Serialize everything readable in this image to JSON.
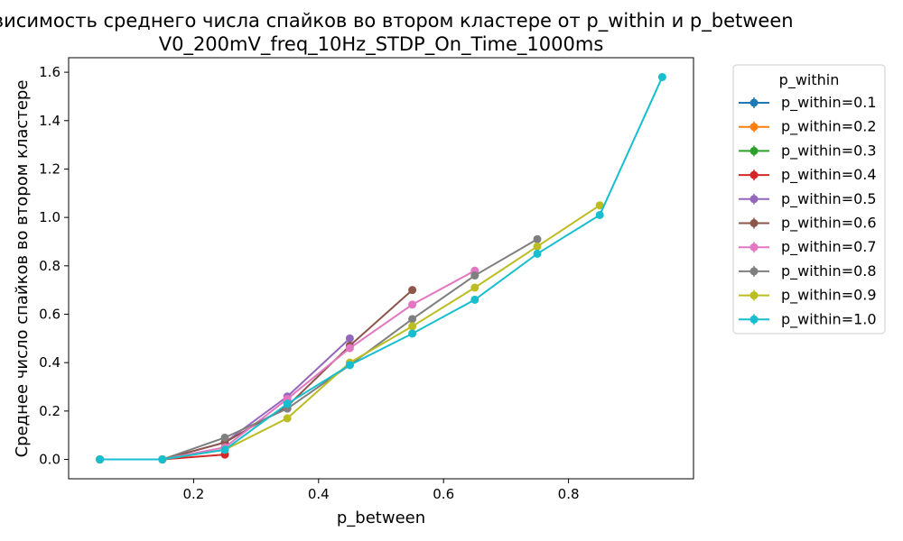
{
  "chart_data": {
    "type": "line",
    "title_line1": "Зависимость среднего числа спайков во втором кластере от p_within и p_between",
    "title_line2": "V0_200mV_freq_10Hz_STDP_On_Time_1000ms",
    "xlabel": "p_between",
    "ylabel": "Среднее число спайков во втором кластере",
    "xlim": [
      0.0,
      1.0
    ],
    "ylim": [
      -0.08,
      1.66
    ],
    "xticks": [
      0.2,
      0.4,
      0.6,
      0.8
    ],
    "yticks": [
      0.0,
      0.2,
      0.4,
      0.6,
      0.8,
      1.0,
      1.2,
      1.4,
      1.6
    ],
    "grid": false,
    "legend_title": "p_within",
    "legend_position": "outside-right",
    "series": [
      {
        "name": "p_within=0.1",
        "color": "#1f77b4",
        "x": [
          0.05,
          0.15
        ],
        "y": [
          0.0,
          0.0
        ]
      },
      {
        "name": "p_within=0.2",
        "color": "#ff7f0e",
        "x": [
          0.05,
          0.15
        ],
        "y": [
          0.0,
          0.0
        ]
      },
      {
        "name": "p_within=0.3",
        "color": "#2ca02c",
        "x": [
          0.05,
          0.15
        ],
        "y": [
          0.0,
          0.0
        ]
      },
      {
        "name": "p_within=0.4",
        "color": "#d62728",
        "x": [
          0.05,
          0.15,
          0.25
        ],
        "y": [
          0.0,
          0.0,
          0.02
        ]
      },
      {
        "name": "p_within=0.5",
        "color": "#9467bd",
        "x": [
          0.05,
          0.15,
          0.25,
          0.35,
          0.45
        ],
        "y": [
          0.0,
          0.0,
          0.07,
          0.26,
          0.5
        ]
      },
      {
        "name": "p_within=0.6",
        "color": "#8c564b",
        "x": [
          0.05,
          0.15,
          0.25,
          0.35,
          0.45,
          0.55
        ],
        "y": [
          0.0,
          0.0,
          0.07,
          0.22,
          0.47,
          0.7
        ]
      },
      {
        "name": "p_within=0.7",
        "color": "#e377c2",
        "x": [
          0.05,
          0.15,
          0.25,
          0.35,
          0.45,
          0.55,
          0.65
        ],
        "y": [
          0.0,
          0.0,
          0.05,
          0.25,
          0.46,
          0.64,
          0.78
        ]
      },
      {
        "name": "p_within=0.8",
        "color": "#7f7f7f",
        "x": [
          0.05,
          0.15,
          0.25,
          0.35,
          0.45,
          0.55,
          0.65,
          0.75
        ],
        "y": [
          0.0,
          0.0,
          0.09,
          0.21,
          0.39,
          0.58,
          0.76,
          0.91
        ]
      },
      {
        "name": "p_within=0.9",
        "color": "#bcbd22",
        "x": [
          0.05,
          0.15,
          0.25,
          0.35,
          0.45,
          0.55,
          0.65,
          0.75,
          0.85
        ],
        "y": [
          0.0,
          0.0,
          0.04,
          0.17,
          0.4,
          0.55,
          0.71,
          0.88,
          1.05
        ]
      },
      {
        "name": "p_within=1.0",
        "color": "#17becf",
        "x": [
          0.05,
          0.15,
          0.25,
          0.35,
          0.45,
          0.55,
          0.65,
          0.75,
          0.85,
          0.95
        ],
        "y": [
          0.0,
          0.0,
          0.04,
          0.23,
          0.39,
          0.52,
          0.66,
          0.85,
          1.01,
          1.58
        ]
      }
    ]
  }
}
